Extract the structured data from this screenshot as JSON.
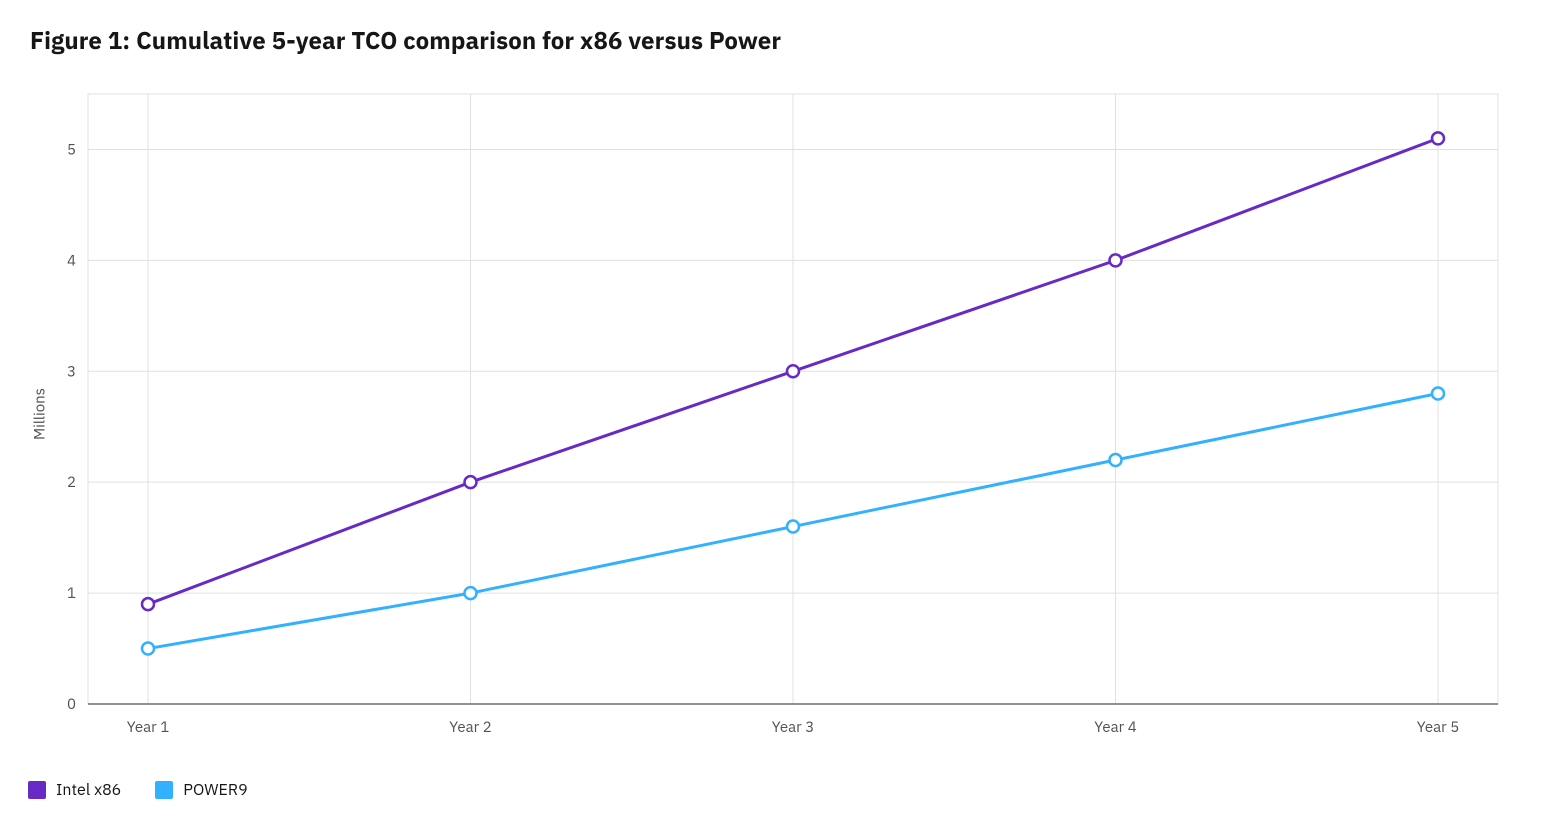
{
  "title": "Figure 1: Cumulative 5-year TCO comparison for x86 versus Power",
  "chart": {
    "type": "line",
    "background_color": "#ffffff",
    "grid_color": "#e0e0e0",
    "axis_line_color": "#6f6f6f",
    "tick_label_color": "#525252",
    "ylabel": "Millions",
    "ylabel_fontsize": 15,
    "title_fontsize": 24,
    "title_fontweight": 700,
    "categories": [
      "Year 1",
      "Year 2",
      "Year 3",
      "Year 4",
      "Year 5"
    ],
    "y_ticks": [
      0,
      1,
      2,
      3,
      4,
      5
    ],
    "ylim": [
      0,
      5.5
    ],
    "line_width": 3,
    "marker_radius": 6,
    "marker_fill": "#ffffff",
    "marker_stroke_width": 2.5,
    "series": [
      {
        "name": "Intel x86",
        "color": "#6929c4",
        "values": [
          0.9,
          2.0,
          3.0,
          4.0,
          5.1
        ]
      },
      {
        "name": "POWER9",
        "color": "#33b1ff",
        "values": [
          0.5,
          1.0,
          1.6,
          2.2,
          2.8
        ]
      }
    ],
    "legend_fontsize": 16,
    "tick_fontsize": 15
  }
}
